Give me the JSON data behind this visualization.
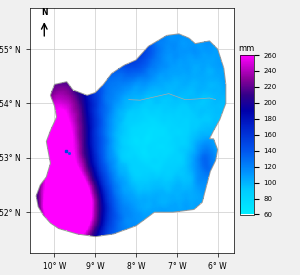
{
  "colorbar_label": "mm",
  "colorbar_ticks": [
    60,
    80,
    100,
    120,
    140,
    160,
    180,
    200,
    220,
    240,
    260
  ],
  "vmin": 60,
  "vmax": 260,
  "xlim": [
    -10.6,
    -5.6
  ],
  "ylim": [
    51.25,
    55.75
  ],
  "xticks": [
    -10,
    -9,
    -8,
    -7,
    -6
  ],
  "yticks": [
    52,
    53,
    54,
    55
  ],
  "bg_color": "#f0f0f0",
  "map_bg": "#ffffff",
  "grid_color": "#cccccc",
  "colormap_colors": [
    [
      0.0,
      "#00eeff"
    ],
    [
      0.15,
      "#00ccff"
    ],
    [
      0.25,
      "#0099ff"
    ],
    [
      0.4,
      "#0055ee"
    ],
    [
      0.55,
      "#0022cc"
    ],
    [
      0.65,
      "#0000aa"
    ],
    [
      0.75,
      "#330088"
    ],
    [
      0.85,
      "#880099"
    ],
    [
      1.0,
      "#ff00ff"
    ]
  ],
  "seed": 17
}
